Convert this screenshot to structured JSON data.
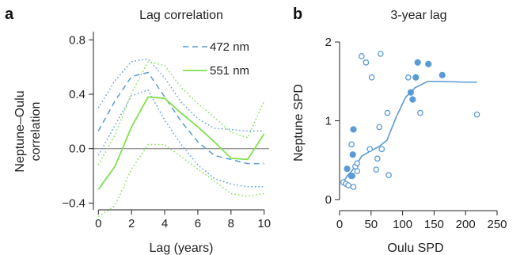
{
  "colors": {
    "blue": "#5b9bd5",
    "green": "#7fe14d",
    "zero_line": "#999999",
    "axis": "#222222"
  },
  "panels": {
    "a": {
      "letter": "a",
      "title": "Lag correlation",
      "xlabel": "Lag (years)",
      "ylabel_lines": [
        "Neptune–Oulu",
        "correlation"
      ],
      "xticks": [
        "0",
        "2",
        "4",
        "6",
        "8",
        "10"
      ],
      "yticks": [
        "−0.4",
        "0.0",
        "0.4",
        "0.8"
      ],
      "legend": [
        {
          "label": "472 nm"
        },
        {
          "label": "551 nm"
        }
      ]
    },
    "b": {
      "letter": "b",
      "title": "3-year lag",
      "xlabel": "Oulu SPD",
      "ylabel": "Neptune SPD",
      "xticks": [
        "0",
        "50",
        "100",
        "150",
        "200",
        "250"
      ],
      "yticks": [
        "0",
        "1",
        "2"
      ]
    }
  },
  "chart_data": [
    {
      "type": "line",
      "title": "Lag correlation",
      "xlabel": "Lag (years)",
      "ylabel": "Neptune–Oulu correlation",
      "xlim": [
        -0.3,
        10.3
      ],
      "ylim": [
        -0.45,
        0.86
      ],
      "x": [
        0,
        1,
        2,
        3,
        4,
        5,
        6,
        7,
        8,
        9,
        10
      ],
      "zero_line": 0,
      "series": [
        {
          "name": "472 nm",
          "style": "dashed",
          "color": "#5b9bd5",
          "values": [
            0.13,
            0.35,
            0.53,
            0.56,
            0.38,
            0.2,
            0.05,
            -0.05,
            -0.08,
            -0.11,
            -0.11
          ]
        },
        {
          "style": "dotted",
          "color": "#5b9bd5",
          "values": [
            0.3,
            0.5,
            0.64,
            0.66,
            0.52,
            0.34,
            0.22,
            0.15,
            0.14,
            0.13,
            0.13
          ]
        },
        {
          "style": "dotted",
          "color": "#5b9bd5",
          "values": [
            -0.05,
            0.17,
            0.39,
            0.43,
            0.21,
            0.03,
            -0.12,
            -0.22,
            -0.26,
            -0.28,
            -0.28
          ]
        },
        {
          "name": "551 nm",
          "style": "solid",
          "color": "#7fe14d",
          "values": [
            -0.3,
            -0.13,
            0.16,
            0.38,
            0.37,
            0.26,
            0.16,
            0.05,
            -0.07,
            -0.08,
            0.11
          ]
        },
        {
          "style": "dotted",
          "color": "#7fe14d",
          "values": [
            -0.12,
            0.1,
            0.41,
            0.64,
            0.61,
            0.45,
            0.33,
            0.23,
            0.12,
            0.08,
            0.35
          ]
        },
        {
          "style": "dotted",
          "color": "#7fe14d",
          "values": [
            -0.5,
            -0.42,
            -0.15,
            0.03,
            0.03,
            -0.06,
            -0.15,
            -0.24,
            -0.33,
            -0.35,
            -0.33
          ]
        }
      ]
    },
    {
      "type": "scatter",
      "title": "3-year lag",
      "xlabel": "Oulu SPD",
      "ylabel": "Neptune SPD",
      "xlim": [
        0,
        250
      ],
      "ylim": [
        0,
        2
      ],
      "series": [
        {
          "marker": "open",
          "color": "#5b9bd5",
          "points": [
            [
              6,
              0.22
            ],
            [
              10,
              0.2
            ],
            [
              14,
              0.18
            ],
            [
              18,
              0.3
            ],
            [
              19,
              0.7
            ],
            [
              22,
              0.16
            ],
            [
              25,
              0.42
            ],
            [
              28,
              0.46
            ],
            [
              28,
              0.36
            ],
            [
              35,
              1.82
            ],
            [
              42,
              1.74
            ],
            [
              48,
              0.64
            ],
            [
              51,
              1.55
            ],
            [
              58,
              0.38
            ],
            [
              60,
              0.52
            ],
            [
              63,
              0.92
            ],
            [
              65,
              1.85
            ],
            [
              67,
              0.64
            ],
            [
              76,
              1.1
            ],
            [
              78,
              0.31
            ],
            [
              109,
              1.55
            ],
            [
              128,
              1.1
            ],
            [
              218,
              1.08
            ]
          ]
        },
        {
          "marker": "filled",
          "color": "#5b9bd5",
          "points": [
            [
              12,
              0.39
            ],
            [
              20,
              0.3
            ],
            [
              21,
              0.57
            ],
            [
              22,
              0.89
            ],
            [
              113,
              1.36
            ],
            [
              116,
              1.27
            ],
            [
              121,
              1.55
            ],
            [
              124,
              1.74
            ],
            [
              141,
              1.72
            ],
            [
              163,
              1.58
            ]
          ]
        },
        {
          "type": "line",
          "color": "#5b9bd5",
          "points": [
            [
              6,
              0.22
            ],
            [
              12,
              0.3
            ],
            [
              18,
              0.35
            ],
            [
              25,
              0.42
            ],
            [
              35,
              0.55
            ],
            [
              50,
              0.62
            ],
            [
              62,
              0.67
            ],
            [
              75,
              0.75
            ],
            [
              90,
              1.05
            ],
            [
              105,
              1.3
            ],
            [
              120,
              1.42
            ],
            [
              140,
              1.5
            ],
            [
              160,
              1.5
            ],
            [
              200,
              1.49
            ],
            [
              218,
              1.49
            ]
          ]
        }
      ]
    }
  ]
}
